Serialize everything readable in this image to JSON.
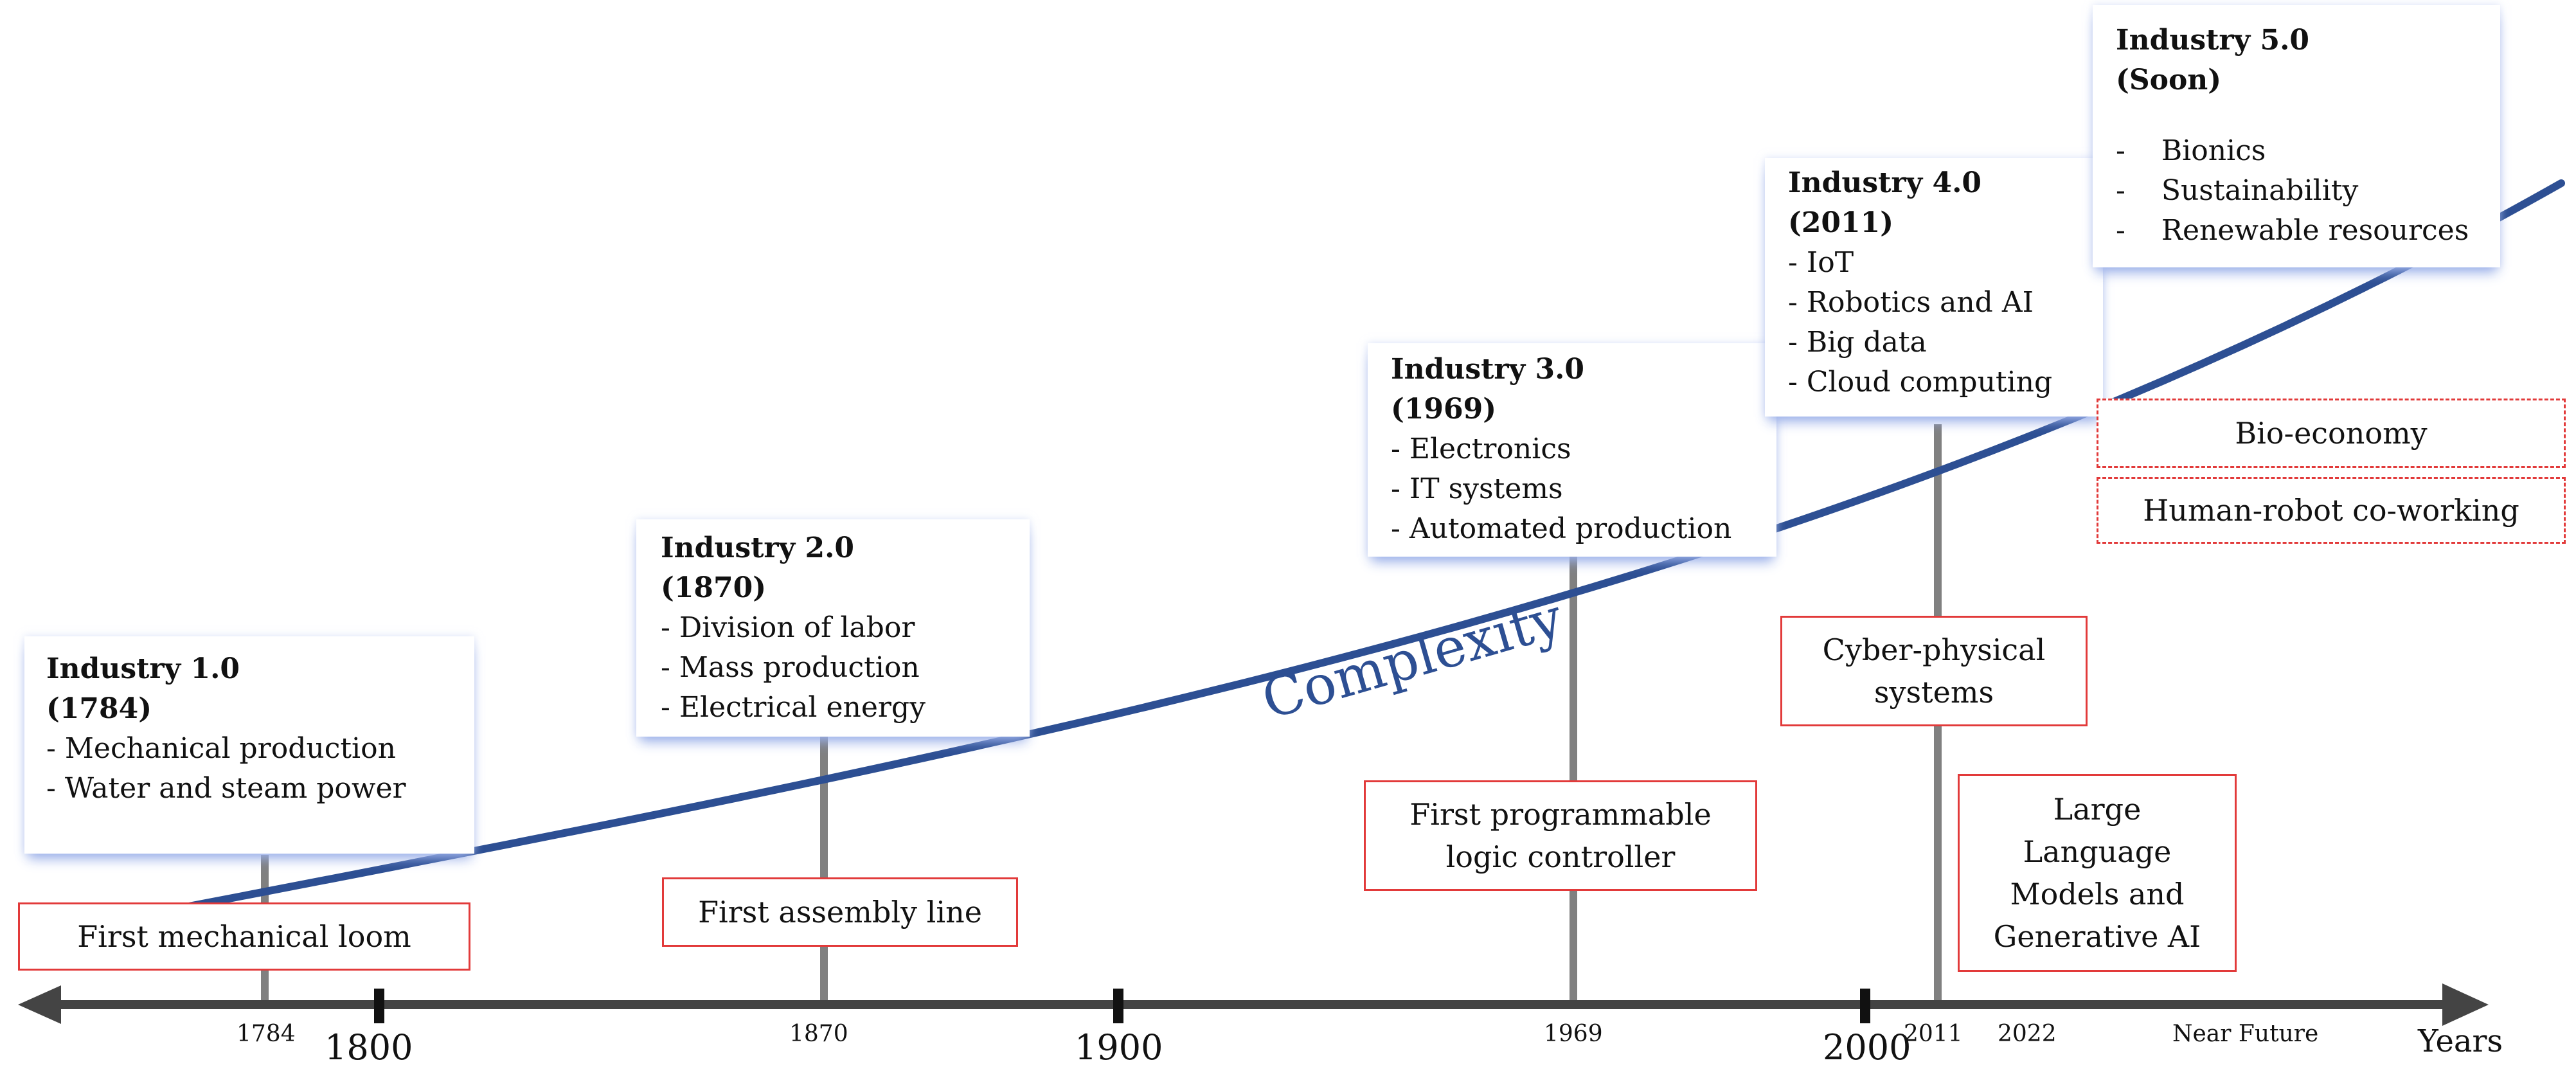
{
  "stages": [
    {
      "title": "Industry 1.0",
      "year": "(1784)",
      "items": [
        "- Mechanical production",
        "- Water and steam power"
      ]
    },
    {
      "title": "Industry 2.0",
      "year": "(1870)",
      "items": [
        "- Division of labor",
        "- Mass production",
        "- Electrical energy"
      ]
    },
    {
      "title": "Industry 3.0",
      "year": "(1969)",
      "items": [
        "- Electronics",
        "- IT systems",
        "- Automated production"
      ]
    },
    {
      "title": "Industry 4.0",
      "year": "(2011)",
      "items": [
        "- IoT",
        "- Robotics and AI",
        "- Big data",
        "- Cloud computing"
      ]
    },
    {
      "title": "Industry 5.0",
      "year": "(Soon)",
      "items": [
        "-    Bionics",
        "-    Sustainability",
        "-    Renewable resources"
      ]
    }
  ],
  "events": {
    "loom": "First mechanical loom",
    "assembly": "First assembly line",
    "plc": "First programmable logic controller",
    "cps": "Cyber-physical systems",
    "llm": "Large Language Models and Generative AI",
    "bio": "Bio-economy",
    "hrc": "Human-robot co-working"
  },
  "axis": {
    "event_years": [
      "1784",
      "1870",
      "1969",
      "2011",
      "2022",
      "Near Future"
    ],
    "century_labels": [
      "1800",
      "1900",
      "2000"
    ],
    "axis_label": "Years"
  },
  "curve_label": "Complexity",
  "colors": {
    "curve": "#2d4f93",
    "event_border": "#e23a3a",
    "axis": "#444444",
    "stem": "#808080"
  }
}
